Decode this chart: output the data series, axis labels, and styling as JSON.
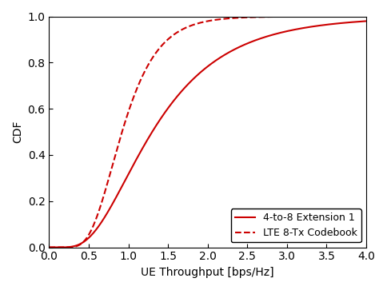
{
  "title": "",
  "xlabel": "UE Throughput [bps/Hz]",
  "ylabel": "CDF",
  "xlim": [
    0,
    4
  ],
  "ylim": [
    0,
    1
  ],
  "xticks": [
    0,
    0.5,
    1,
    1.5,
    2,
    2.5,
    3,
    3.5,
    4
  ],
  "yticks": [
    0,
    0.2,
    0.4,
    0.6,
    0.8,
    1
  ],
  "line_color": "#cc0000",
  "bg_color": "#ffffff",
  "legend_entries": [
    "4-to-8 Extension 1",
    "LTE 8-Tx Codebook"
  ],
  "legend_loc": "lower right",
  "curve1": {
    "mean": 1.3,
    "std": 0.55,
    "label": "4-to-8 Extension 1",
    "linestyle": "-"
  },
  "curve2": {
    "mean": 0.95,
    "std": 0.35,
    "label": "LTE 8-Tx Codebook",
    "linestyle": "--"
  },
  "figsize": [
    4.84,
    3.63
  ],
  "dpi": 100
}
